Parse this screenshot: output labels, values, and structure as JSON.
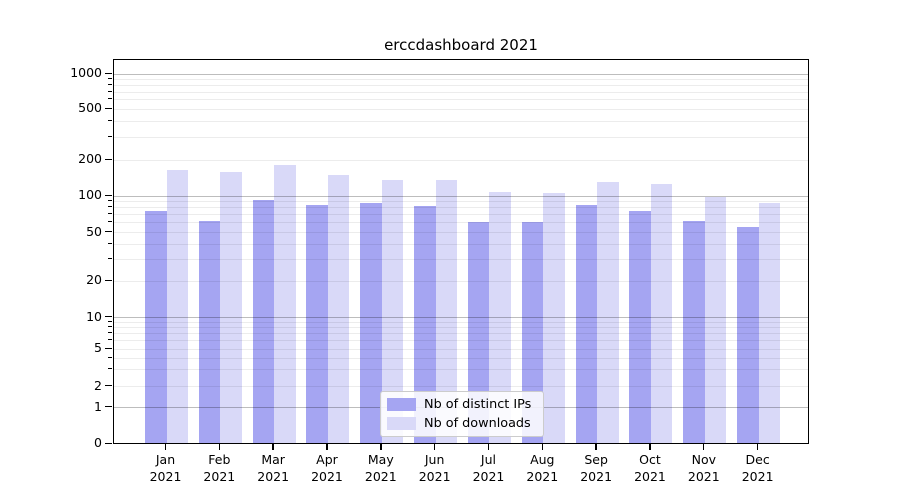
{
  "title": "erccdashboard 2021",
  "chart_data": {
    "type": "bar",
    "title": "erccdashboard 2021",
    "categories": [
      "Jan 2021",
      "Feb 2021",
      "Mar 2021",
      "Apr 2021",
      "May 2021",
      "Jun 2021",
      "Jul 2021",
      "Aug 2021",
      "Sep 2021",
      "Oct 2021",
      "Nov 2021",
      "Dec 2021"
    ],
    "x_tick_month": [
      "Jan",
      "Feb",
      "Mar",
      "Apr",
      "May",
      "Jun",
      "Jul",
      "Aug",
      "Sep",
      "Oct",
      "Nov",
      "Dec"
    ],
    "x_tick_year": "2021",
    "series": [
      {
        "name": "Nb of distinct IPs",
        "color": "#a5a5f2",
        "values": [
          75,
          62,
          93,
          84,
          88,
          82,
          61,
          61,
          85,
          75,
          62,
          55
        ]
      },
      {
        "name": "Nb of downloads",
        "color": "#d9d9f8",
        "values": [
          165,
          159,
          180,
          151,
          137,
          137,
          109,
          105,
          130,
          125,
          98,
          88
        ]
      }
    ],
    "yscale": "symlog",
    "yticks": [
      0,
      1,
      2,
      5,
      10,
      20,
      50,
      100,
      200,
      500,
      1000
    ],
    "ylim": [
      0,
      1000
    ],
    "grid": "horizontal major and minor gridlines",
    "legend_position": "inside lower-center"
  },
  "legend": {
    "items": [
      {
        "label": "Nb of distinct IPs"
      },
      {
        "label": "Nb of downloads"
      }
    ]
  }
}
